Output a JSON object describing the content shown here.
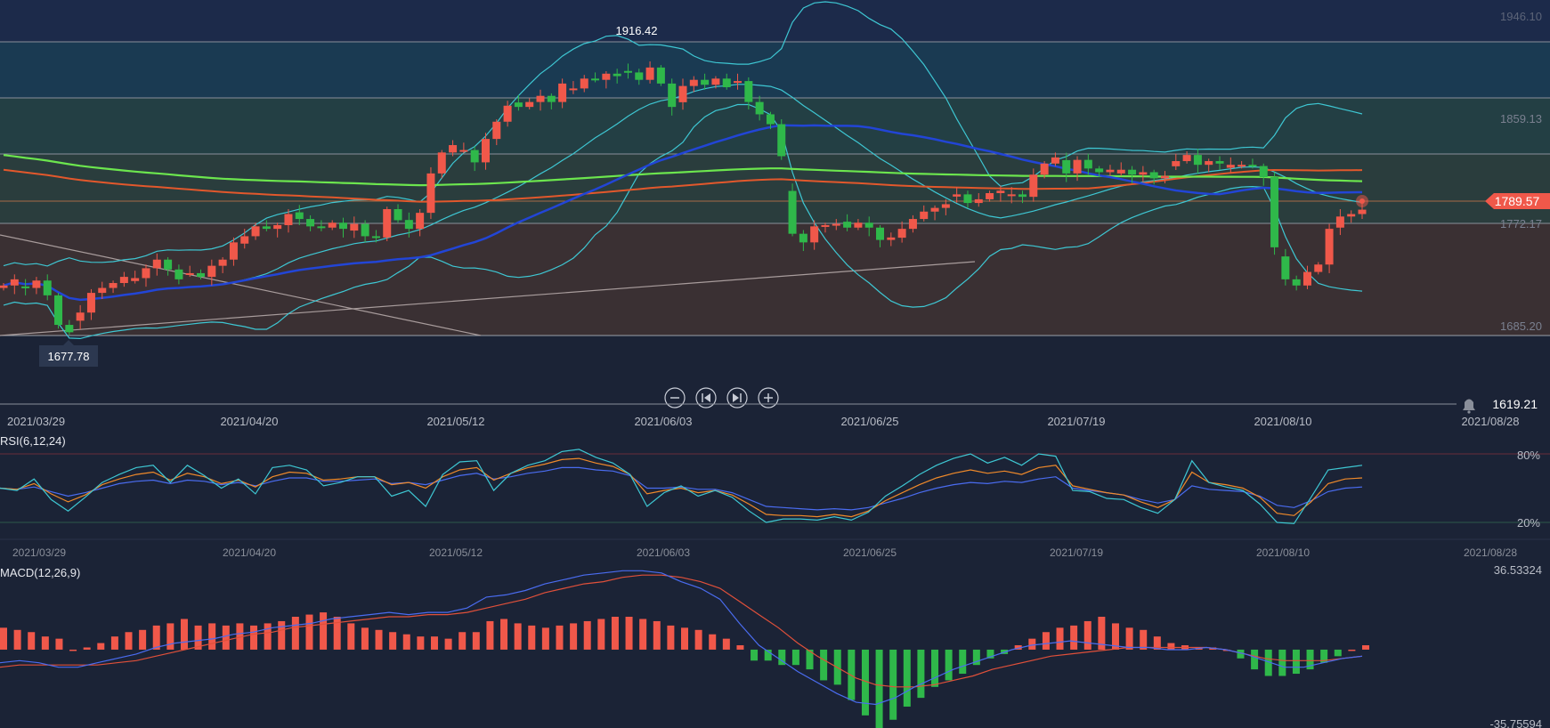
{
  "colors": {
    "background": "#1b2336",
    "up": "#f0584a",
    "down": "#2fb84a",
    "bollinger": "#3ec7d3",
    "ma_blue": "#2245d6",
    "ma_green": "#6ce64e",
    "ma_orange": "#e2582c",
    "rsi6": "#3ec7d3",
    "rsi12": "#f08a2a",
    "rsi24": "#4a6cf0",
    "macd_dif": "#4a6cf0",
    "macd_dea": "#e0503a",
    "price_tag": "#f0584a"
  },
  "main": {
    "price_axis": [
      "1946.10",
      "1859.13",
      "1772.17",
      "1685.20"
    ],
    "high_label": "1916.42",
    "low_label": "1677.78",
    "last_price": "1789.57",
    "crosshair_price": "1619.21",
    "bell_icon": "bell-icon",
    "controls": [
      {
        "name": "zoom-out-button",
        "icon": "minus-icon"
      },
      {
        "name": "jump-start-button",
        "icon": "skip-back-icon"
      },
      {
        "name": "jump-end-button",
        "icon": "skip-forward-icon"
      },
      {
        "name": "zoom-in-button",
        "icon": "plus-icon"
      }
    ]
  },
  "dates": [
    "2021/03/29",
    "2021/04/20",
    "2021/05/12",
    "2021/06/03",
    "2021/06/25",
    "2021/07/19",
    "2021/08/10",
    "2021/08/28"
  ],
  "rsi": {
    "label": "RSI(6,12,24)",
    "levels": [
      "80%",
      "20%"
    ]
  },
  "macd": {
    "label": "MACD(12,26,9)",
    "max_label": "36.53324",
    "min_label": "-35.75594"
  },
  "chart_data": {
    "type": "candlestick",
    "symbol_scale": {
      "price_range": [
        1677.78,
        1946.1
      ]
    },
    "y_axis_ticks": [
      1946.1,
      1859.13,
      1772.17,
      1685.2
    ],
    "x_axis_ticks": [
      "2021/03/29",
      "2021/04/20",
      "2021/05/12",
      "2021/06/03",
      "2021/06/25",
      "2021/07/19",
      "2021/08/10",
      "2021/08/28"
    ],
    "period_high": 1916.42,
    "period_low": 1677.78,
    "last_price": 1789.57,
    "closes": [
      1728,
      1733,
      1726,
      1732,
      1720,
      1696,
      1690,
      1706,
      1722,
      1726,
      1730,
      1735,
      1734,
      1742,
      1749,
      1741,
      1733,
      1738,
      1735,
      1744,
      1749,
      1763,
      1768,
      1776,
      1774,
      1777,
      1786,
      1782,
      1776,
      1775,
      1779,
      1774,
      1778,
      1768,
      1767,
      1790,
      1781,
      1774,
      1787,
      1819,
      1836,
      1842,
      1838,
      1828,
      1847,
      1861,
      1874,
      1873,
      1877,
      1882,
      1877,
      1892,
      1888,
      1896,
      1895,
      1900,
      1898,
      1901,
      1895,
      1905,
      1892,
      1873,
      1890,
      1895,
      1891,
      1896,
      1889,
      1894,
      1877,
      1867,
      1859,
      1833,
      1770,
      1763,
      1776,
      1777,
      1778,
      1775,
      1779,
      1775,
      1765,
      1767,
      1774,
      1782,
      1788,
      1791,
      1794,
      1802,
      1795,
      1798,
      1803,
      1805,
      1802,
      1800,
      1818,
      1827,
      1832,
      1819,
      1830,
      1823,
      1820,
      1822,
      1822,
      1818,
      1820,
      1815,
      1817,
      1829,
      1834,
      1826,
      1829,
      1827,
      1826,
      1826,
      1825,
      1816,
      1759,
      1733,
      1728,
      1739,
      1745,
      1774,
      1784,
      1786,
      1789.57
    ],
    "rsi": {
      "rsi6": [
        50,
        48,
        58,
        40,
        30,
        42,
        55,
        62,
        68,
        70,
        55,
        70,
        61,
        50,
        58,
        45,
        68,
        70,
        66,
        52,
        55,
        60,
        60,
        43,
        48,
        34,
        62,
        73,
        74,
        48,
        63,
        70,
        74,
        82,
        84,
        77,
        72,
        62,
        34,
        46,
        52,
        43,
        48,
        42,
        30,
        20,
        23,
        23,
        22,
        25,
        22,
        29,
        43,
        52,
        62,
        70,
        76,
        80,
        72,
        77,
        70,
        80,
        78,
        48,
        47,
        41,
        40,
        33,
        28,
        40,
        74,
        55,
        51,
        48,
        36,
        20,
        19,
        42,
        66,
        68,
        70
      ],
      "rsi12": [
        50,
        49,
        54,
        45,
        38,
        44,
        53,
        58,
        62,
        64,
        57,
        63,
        60,
        54,
        57,
        51,
        60,
        64,
        63,
        57,
        58,
        60,
        60,
        53,
        55,
        50,
        60,
        66,
        68,
        57,
        63,
        68,
        71,
        75,
        76,
        72,
        69,
        62,
        45,
        48,
        50,
        46,
        48,
        44,
        36,
        27,
        26,
        26,
        25,
        27,
        25,
        30,
        39,
        46,
        53,
        59,
        63,
        66,
        63,
        65,
        62,
        68,
        70,
        52,
        49,
        46,
        44,
        38,
        33,
        40,
        64,
        55,
        53,
        50,
        42,
        28,
        26,
        38,
        54,
        58,
        59
      ],
      "rsi24": [
        50,
        49,
        51,
        47,
        43,
        46,
        50,
        54,
        56,
        57,
        54,
        57,
        56,
        53,
        55,
        52,
        56,
        59,
        59,
        56,
        56,
        57,
        58,
        54,
        55,
        53,
        57,
        61,
        63,
        58,
        60,
        63,
        65,
        68,
        68,
        66,
        65,
        61,
        50,
        50,
        51,
        49,
        49,
        46,
        40,
        34,
        33,
        32,
        31,
        32,
        31,
        33,
        37,
        41,
        46,
        50,
        53,
        55,
        54,
        56,
        55,
        58,
        60,
        50,
        48,
        46,
        44,
        40,
        37,
        40,
        52,
        49,
        48,
        47,
        43,
        35,
        33,
        39,
        47,
        50,
        51
      ]
    },
    "macd": {
      "axis_range": [
        -35.75594,
        36.53324
      ],
      "dif": [
        -6,
        -5,
        -6,
        -8,
        -8,
        -6,
        -4,
        -2,
        1,
        3,
        4,
        5,
        7,
        8,
        10,
        11,
        12,
        14,
        15,
        16,
        17,
        16,
        17,
        17,
        19,
        24,
        25,
        27,
        30,
        32,
        34,
        35,
        36,
        36,
        35,
        31,
        28,
        23,
        12,
        2,
        -4,
        -10,
        -15,
        -20,
        -24,
        -25,
        -22,
        -17,
        -13,
        -9,
        -6,
        -3,
        0,
        2,
        3,
        4,
        3,
        2,
        1,
        1,
        0,
        0,
        1,
        0,
        -2,
        -5,
        -8,
        -8,
        -6,
        -4,
        -3
      ],
      "dea": [
        -8,
        -7,
        -7,
        -7,
        -7,
        -7,
        -6,
        -5,
        -3,
        -1,
        1,
        3,
        5,
        7,
        8,
        10,
        11,
        12,
        13,
        14,
        15,
        15,
        16,
        16,
        17,
        19,
        21,
        23,
        26,
        28,
        30,
        31,
        33,
        34,
        34,
        33,
        31,
        28,
        22,
        16,
        10,
        3,
        -3,
        -8,
        -13,
        -16,
        -17,
        -17,
        -16,
        -14,
        -12,
        -9,
        -7,
        -5,
        -3,
        -2,
        -1,
        0,
        1,
        1,
        1,
        1,
        1,
        0,
        -2,
        -4,
        -5,
        -5,
        -5,
        -4,
        -3
      ],
      "histogram": [
        10,
        9,
        8,
        6,
        5,
        0,
        1,
        3,
        6,
        8,
        9,
        11,
        12,
        14,
        11,
        12,
        11,
        12,
        11,
        12,
        13,
        15,
        16,
        17,
        15,
        12,
        10,
        9,
        8,
        7,
        6,
        6,
        5,
        8,
        8,
        13,
        14,
        12,
        11,
        10,
        11,
        12,
        13,
        14,
        15,
        15,
        14,
        13,
        11,
        10,
        9,
        7,
        5,
        2,
        -5,
        -5,
        -7,
        -7,
        -9,
        -14,
        -16,
        -23,
        -30,
        -36,
        -32,
        -26,
        -22,
        -17,
        -14,
        -11,
        -7,
        -4,
        -2,
        2,
        5,
        8,
        10,
        11,
        13,
        15,
        12,
        10,
        9,
        6,
        3,
        2,
        1,
        1,
        0,
        -4,
        -9,
        -12,
        -12,
        -11,
        -9,
        -6,
        -3,
        0,
        2
      ]
    }
  }
}
